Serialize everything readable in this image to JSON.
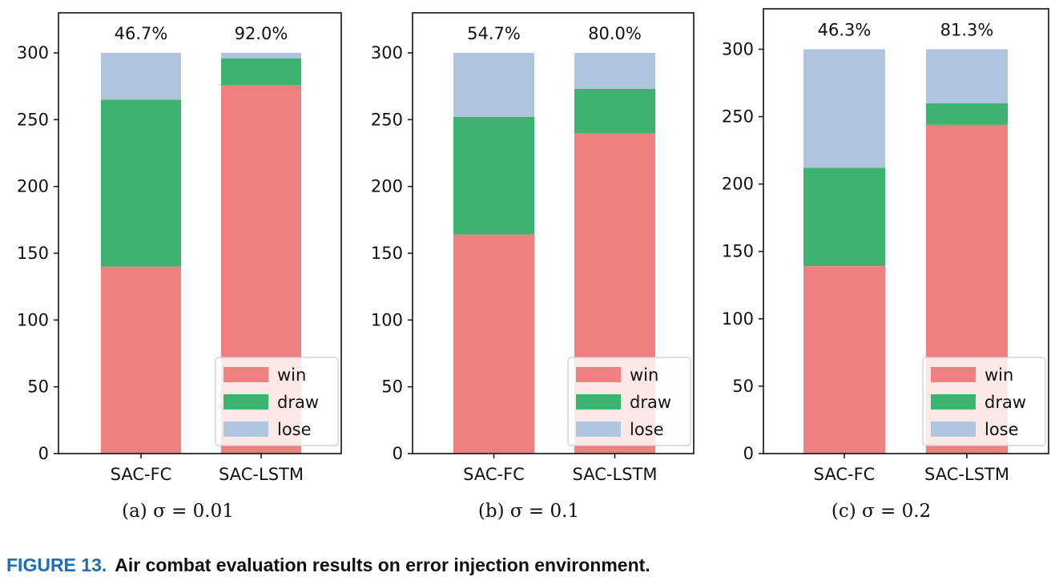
{
  "caption": {
    "number": "FIGURE 13.",
    "text": "Air combat evaluation results on error injection environment."
  },
  "colors": {
    "win": "#f08080",
    "draw": "#3cb371",
    "lose": "#b0c4de"
  },
  "chart_data": [
    {
      "type": "bar",
      "stacked": true,
      "subcaption": "(a) σ = 0.01",
      "categories": [
        "SAC-FC",
        "SAC-LSTM"
      ],
      "series": [
        {
          "name": "win",
          "values": [
            140,
            276
          ]
        },
        {
          "name": "draw",
          "values": [
            125,
            20
          ]
        },
        {
          "name": "lose",
          "values": [
            35,
            4
          ]
        }
      ],
      "annotations": [
        "46.7%",
        "92.0%"
      ],
      "ylim": [
        0,
        330
      ],
      "yticks": [
        0,
        50,
        100,
        150,
        200,
        250,
        300
      ],
      "legend": "bottom-right",
      "grid": false
    },
    {
      "type": "bar",
      "stacked": true,
      "subcaption": "(b) σ = 0.1",
      "categories": [
        "SAC-FC",
        "SAC-LSTM"
      ],
      "series": [
        {
          "name": "win",
          "values": [
            164,
            240
          ]
        },
        {
          "name": "draw",
          "values": [
            88,
            33
          ]
        },
        {
          "name": "lose",
          "values": [
            48,
            27
          ]
        }
      ],
      "annotations": [
        "54.7%",
        "80.0%"
      ],
      "ylim": [
        0,
        330
      ],
      "yticks": [
        0,
        50,
        100,
        150,
        200,
        250,
        300
      ],
      "legend": "bottom-right",
      "grid": false
    },
    {
      "type": "bar",
      "stacked": true,
      "subcaption": "(c) σ = 0.2",
      "categories": [
        "SAC-FC",
        "SAC-LSTM"
      ],
      "series": [
        {
          "name": "win",
          "values": [
            139,
            244
          ]
        },
        {
          "name": "draw",
          "values": [
            73,
            16
          ]
        },
        {
          "name": "lose",
          "values": [
            88,
            40
          ]
        }
      ],
      "annotations": [
        "46.3%",
        "81.3%"
      ],
      "ylim": [
        0,
        330
      ],
      "yticks": [
        0,
        50,
        100,
        150,
        200,
        250,
        300
      ],
      "legend": "bottom-right",
      "grid": false
    }
  ]
}
